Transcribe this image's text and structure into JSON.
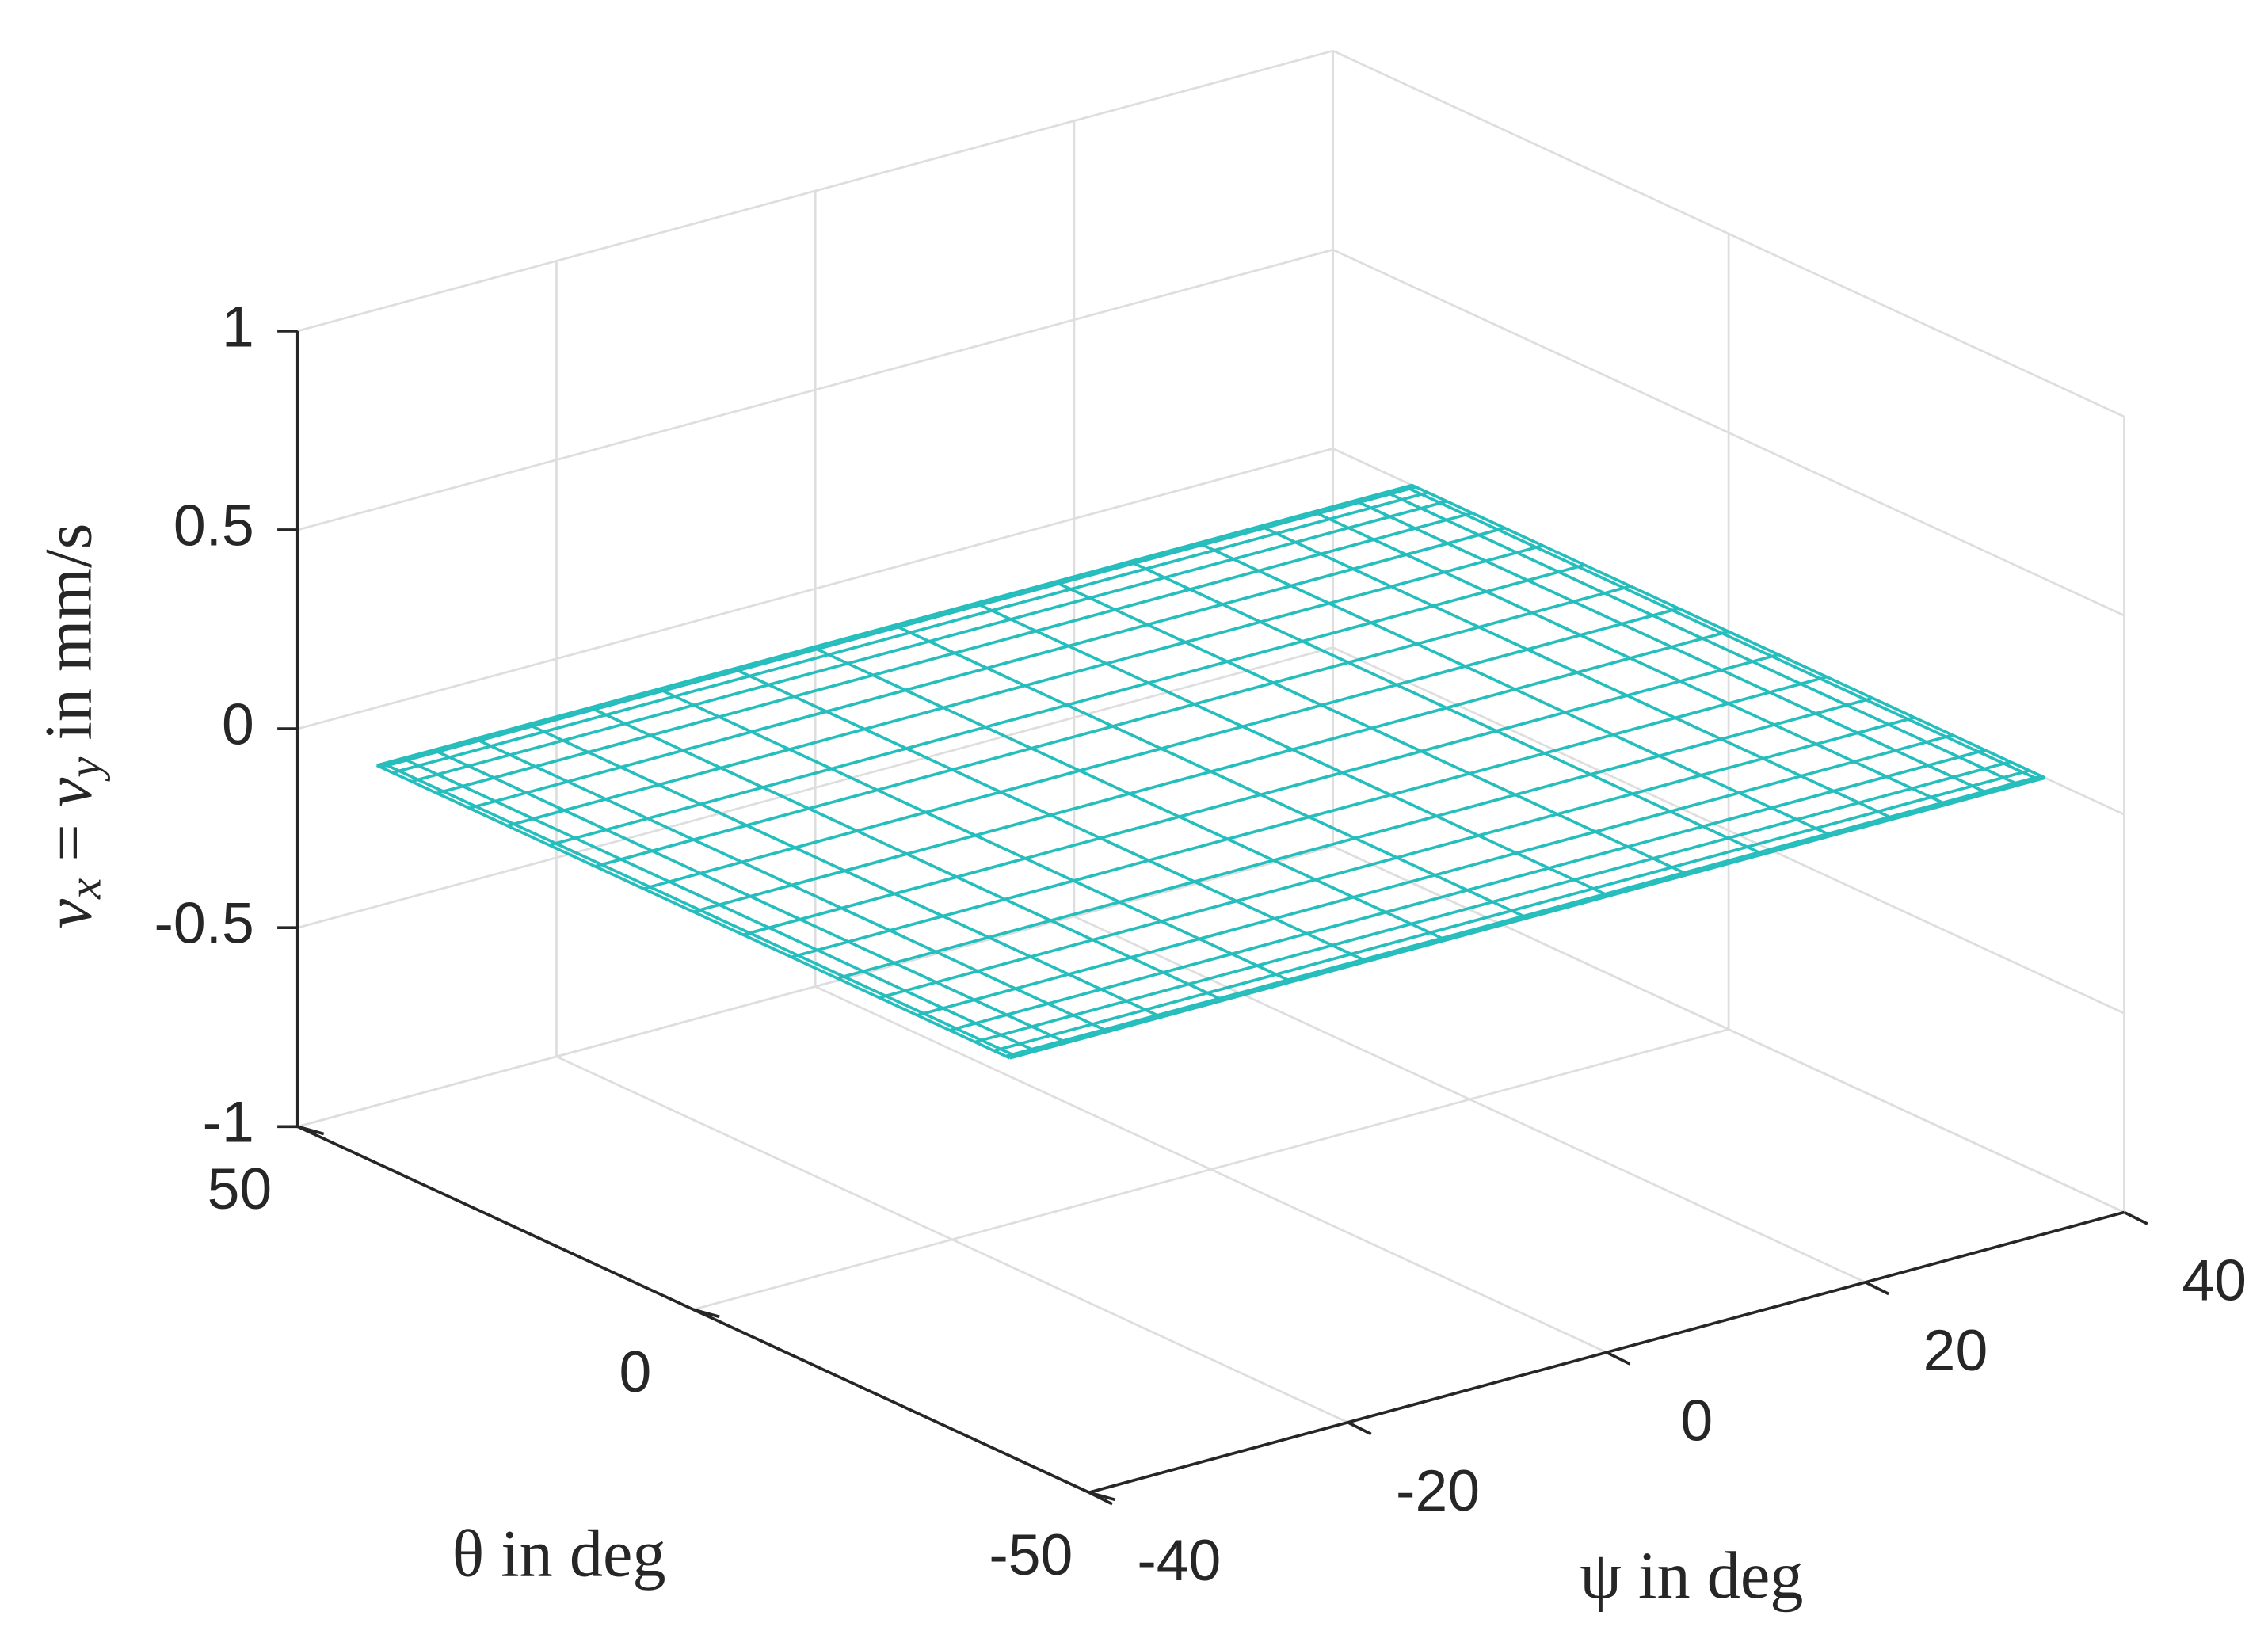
{
  "chart_data": {
    "type": "mesh",
    "xlabel": "ψ in deg",
    "ylabel": "θ in deg",
    "zlabel": [
      {
        "text": "v",
        "sub": false
      },
      {
        "text": "x",
        "sub": true
      },
      {
        "text": " = ",
        "sub": false
      },
      {
        "text": "v",
        "sub": false
      },
      {
        "text": "y",
        "sub": true
      },
      {
        "text": " in mm/s",
        "sub": false
      }
    ],
    "x": [
      -40,
      -39.5,
      -38,
      -35.6,
      -32.4,
      -28.3,
      -23.5,
      -18.2,
      -12.4,
      -6.3,
      0,
      6.3,
      12.4,
      18.2,
      23.5,
      28.3,
      32.4,
      35.6,
      38,
      39.5,
      40
    ],
    "y": [
      -40,
      -39.5,
      -38,
      -35.6,
      -32.4,
      -28.3,
      -23.5,
      -18.2,
      -12.4,
      -6.3,
      0,
      6.3,
      12.4,
      18.2,
      23.5,
      28.3,
      32.4,
      35.6,
      38,
      39.5,
      40
    ],
    "z": [
      [
        0,
        0,
        0,
        0,
        0,
        0,
        0,
        0,
        0,
        0,
        0,
        0,
        0,
        0,
        0,
        0,
        0,
        0,
        0,
        0,
        0
      ],
      [
        0,
        0,
        0,
        0,
        0,
        0,
        0,
        0,
        0,
        0,
        0,
        0,
        0,
        0,
        0,
        0,
        0,
        0,
        0,
        0,
        0
      ],
      [
        0,
        0,
        0,
        0,
        0,
        0,
        0,
        0,
        0,
        0,
        0,
        0,
        0,
        0,
        0,
        0,
        0,
        0,
        0,
        0,
        0
      ],
      [
        0,
        0,
        0,
        0,
        0,
        0,
        0,
        0,
        0,
        0,
        0,
        0,
        0,
        0,
        0,
        0,
        0,
        0,
        0,
        0,
        0
      ],
      [
        0,
        0,
        0,
        0,
        0,
        0,
        0,
        0,
        0,
        0,
        0,
        0,
        0,
        0,
        0,
        0,
        0,
        0,
        0,
        0,
        0
      ],
      [
        0,
        0,
        0,
        0,
        0,
        0,
        0,
        0,
        0,
        0,
        0,
        0,
        0,
        0,
        0,
        0,
        0,
        0,
        0,
        0,
        0
      ],
      [
        0,
        0,
        0,
        0,
        0,
        0,
        0,
        0,
        0,
        0,
        0,
        0,
        0,
        0,
        0,
        0,
        0,
        0,
        0,
        0,
        0
      ],
      [
        0,
        0,
        0,
        0,
        0,
        0,
        0,
        0,
        0,
        0,
        0,
        0,
        0,
        0,
        0,
        0,
        0,
        0,
        0,
        0,
        0
      ],
      [
        0,
        0,
        0,
        0,
        0,
        0,
        0,
        0,
        0,
        0,
        0,
        0,
        0,
        0,
        0,
        0,
        0,
        0,
        0,
        0,
        0
      ],
      [
        0,
        0,
        0,
        0,
        0,
        0,
        0,
        0,
        0,
        0,
        0,
        0,
        0,
        0,
        0,
        0,
        0,
        0,
        0,
        0,
        0
      ],
      [
        0,
        0,
        0,
        0,
        0,
        0,
        0,
        0,
        0,
        0,
        0,
        0,
        0,
        0,
        0,
        0,
        0,
        0,
        0,
        0,
        0
      ],
      [
        0,
        0,
        0,
        0,
        0,
        0,
        0,
        0,
        0,
        0,
        0,
        0,
        0,
        0,
        0,
        0,
        0,
        0,
        0,
        0,
        0
      ],
      [
        0,
        0,
        0,
        0,
        0,
        0,
        0,
        0,
        0,
        0,
        0,
        0,
        0,
        0,
        0,
        0,
        0,
        0,
        0,
        0,
        0
      ],
      [
        0,
        0,
        0,
        0,
        0,
        0,
        0,
        0,
        0,
        0,
        0,
        0,
        0,
        0,
        0,
        0,
        0,
        0,
        0,
        0,
        0
      ],
      [
        0,
        0,
        0,
        0,
        0,
        0,
        0,
        0,
        0,
        0,
        0,
        0,
        0,
        0,
        0,
        0,
        0,
        0,
        0,
        0,
        0
      ],
      [
        0,
        0,
        0,
        0,
        0,
        0,
        0,
        0,
        0,
        0,
        0,
        0,
        0,
        0,
        0,
        0,
        0,
        0,
        0,
        0,
        0
      ],
      [
        0,
        0,
        0,
        0,
        0,
        0,
        0,
        0,
        0,
        0,
        0,
        0,
        0,
        0,
        0,
        0,
        0,
        0,
        0,
        0,
        0
      ],
      [
        0,
        0,
        0,
        0,
        0,
        0,
        0,
        0,
        0,
        0,
        0,
        0,
        0,
        0,
        0,
        0,
        0,
        0,
        0,
        0,
        0
      ],
      [
        0,
        0,
        0,
        0,
        0,
        0,
        0,
        0,
        0,
        0,
        0,
        0,
        0,
        0,
        0,
        0,
        0,
        0,
        0,
        0,
        0
      ],
      [
        0,
        0,
        0,
        0,
        0,
        0,
        0,
        0,
        0,
        0,
        0,
        0,
        0,
        0,
        0,
        0,
        0,
        0,
        0,
        0,
        0
      ],
      [
        0,
        0,
        0,
        0,
        0,
        0,
        0,
        0,
        0,
        0,
        0,
        0,
        0,
        0,
        0,
        0,
        0,
        0,
        0,
        0,
        0
      ]
    ],
    "color": "#26bdbd",
    "xlim": [
      -40,
      40
    ],
    "xticks": [
      -40,
      -20,
      0,
      20,
      40
    ],
    "ylim": [
      -50,
      50
    ],
    "yticks": [
      -50,
      0,
      50
    ],
    "zlim": [
      -1,
      1
    ],
    "zticks": [
      -1,
      -0.5,
      0,
      0.5,
      1
    ],
    "grid": true
  }
}
